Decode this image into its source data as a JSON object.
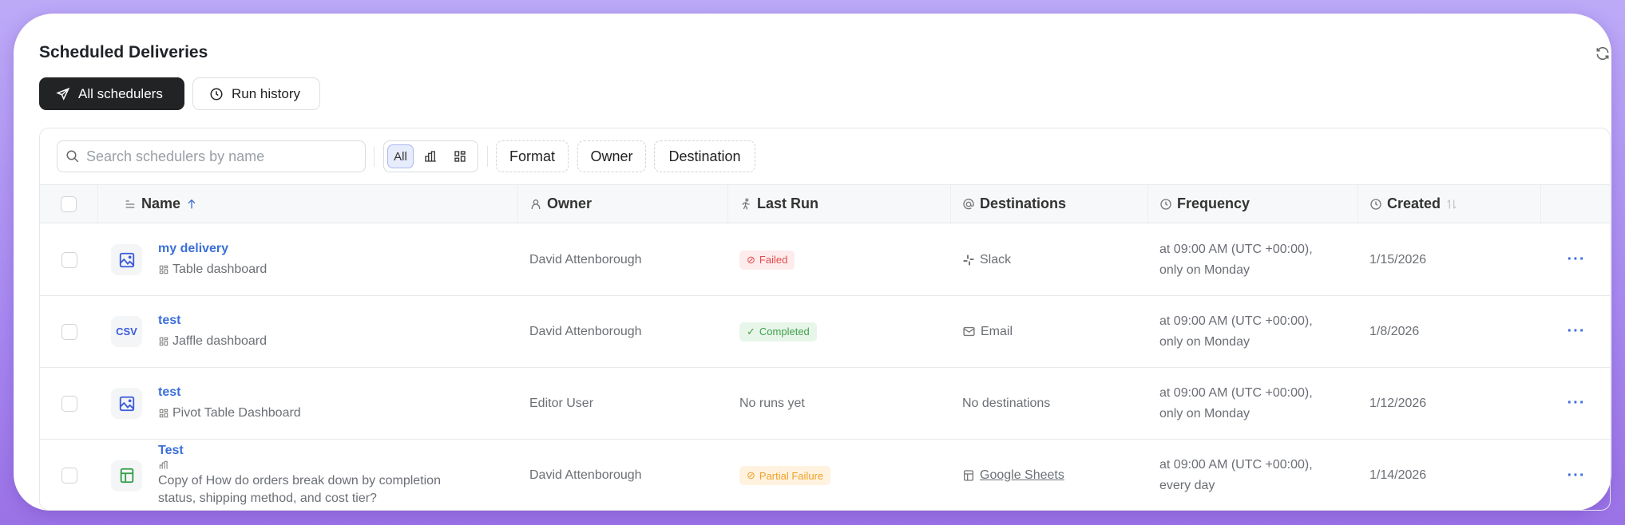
{
  "page": {
    "title": "Scheduled Deliveries",
    "refresh_icon": "refresh-icon"
  },
  "tabs": [
    {
      "label": "All schedulers",
      "icon": "send-icon",
      "active": true
    },
    {
      "label": "Run history",
      "icon": "clock-icon",
      "active": false
    }
  ],
  "toolbar": {
    "search_placeholder": "Search schedulers by name",
    "search_value": "",
    "segment": {
      "all_label": "All",
      "selected": "All"
    },
    "filters": [
      "Format",
      "Owner",
      "Destination"
    ]
  },
  "columns": {
    "name": "Name",
    "owner": "Owner",
    "last_run": "Last Run",
    "destinations": "Destinations",
    "frequency": "Frequency",
    "created": "Created"
  },
  "rows": [
    {
      "name": "my delivery",
      "format": "image",
      "format_label": "",
      "source": "Table dashboard",
      "source_type": "dashboard",
      "owner": "David Attenborough",
      "last_run": "Failed",
      "status": "failed",
      "destination": "Slack",
      "dest_icon": "slack",
      "freq1": "at 09:00 AM (UTC +00:00),",
      "freq2": "only on Monday",
      "created": "1/15/2026"
    },
    {
      "name": "test",
      "format": "csv",
      "format_label": "CSV",
      "source": "Jaffle dashboard",
      "source_type": "dashboard",
      "owner": "David Attenborough",
      "last_run": "Completed",
      "status": "completed",
      "destination": "Email",
      "dest_icon": "email",
      "freq1": "at 09:00 AM (UTC +00:00),",
      "freq2": "only on Monday",
      "created": "1/8/2026"
    },
    {
      "name": "test",
      "format": "image",
      "format_label": "",
      "source": "Pivot Table Dashboard",
      "source_type": "dashboard",
      "owner": "Editor User",
      "last_run": "No runs yet",
      "status": "none",
      "destination": "No destinations",
      "dest_icon": "",
      "freq1": "at 09:00 AM (UTC +00:00),",
      "freq2": "only on Monday",
      "created": "1/12/2026"
    },
    {
      "name": "Test",
      "format": "gsheets",
      "format_label": "",
      "source": "Copy of How do orders break down by completion status, shipping method, and cost tier?",
      "source_type": "chart",
      "owner": "David Attenborough",
      "last_run": "Partial Failure",
      "status": "partial",
      "destination": "Google Sheets",
      "dest_icon": "gsheets",
      "freq1": "at 09:00 AM (UTC +00:00),",
      "freq2": "every day",
      "created": "1/14/2026"
    }
  ],
  "colors": {
    "accent": "#3b6fd8",
    "failed": "#e5484d",
    "completed": "#3fa14a",
    "partial": "#f0a02a"
  }
}
